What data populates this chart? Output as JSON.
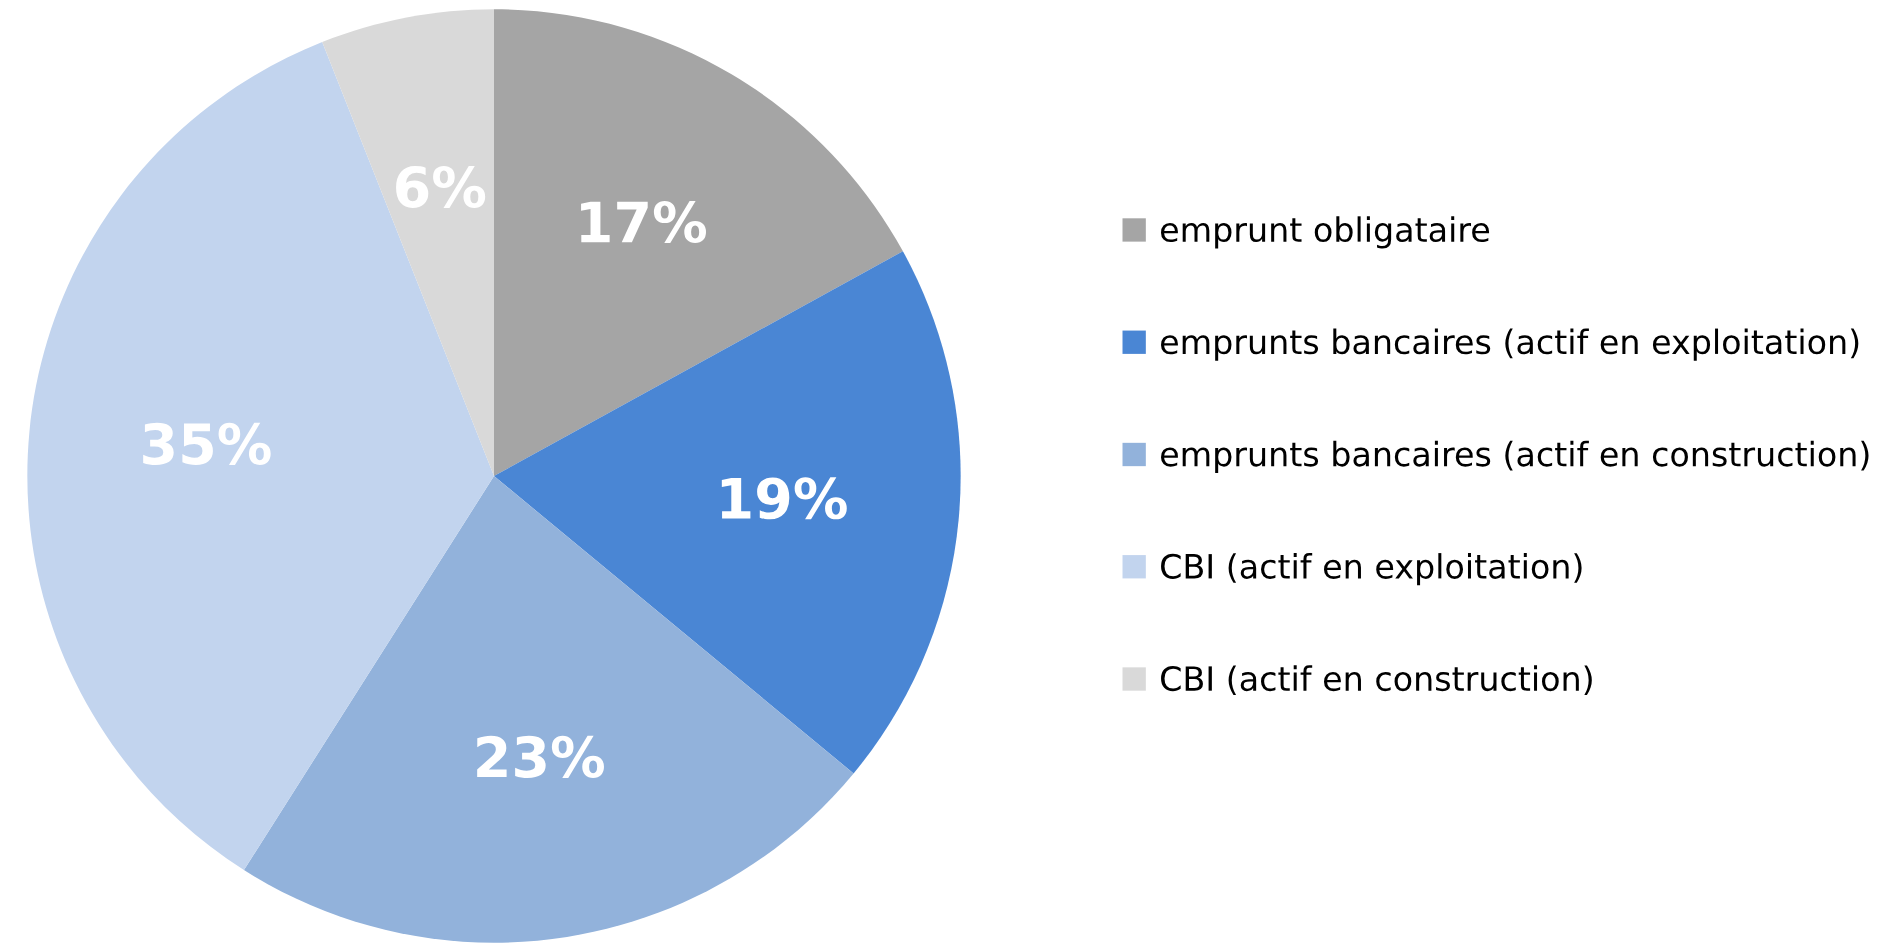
{
  "chart_data": {
    "type": "pie",
    "categories": [
      "emprunt obligataire",
      "emprunts bancaires (actif en exploitation)",
      "emprunts bancaires (actif en construction)",
      "CBI (actif en exploitation)",
      "CBI (actif en construction)"
    ],
    "values": [
      17,
      19,
      23,
      35,
      6
    ],
    "colors": [
      "#a5a5a5",
      "#4a86d4",
      "#92b2db",
      "#c2d4ee",
      "#d9d9d9"
    ],
    "value_labels": [
      "17%",
      "19%",
      "23%",
      "35%",
      "6%"
    ],
    "legend": "right"
  }
}
